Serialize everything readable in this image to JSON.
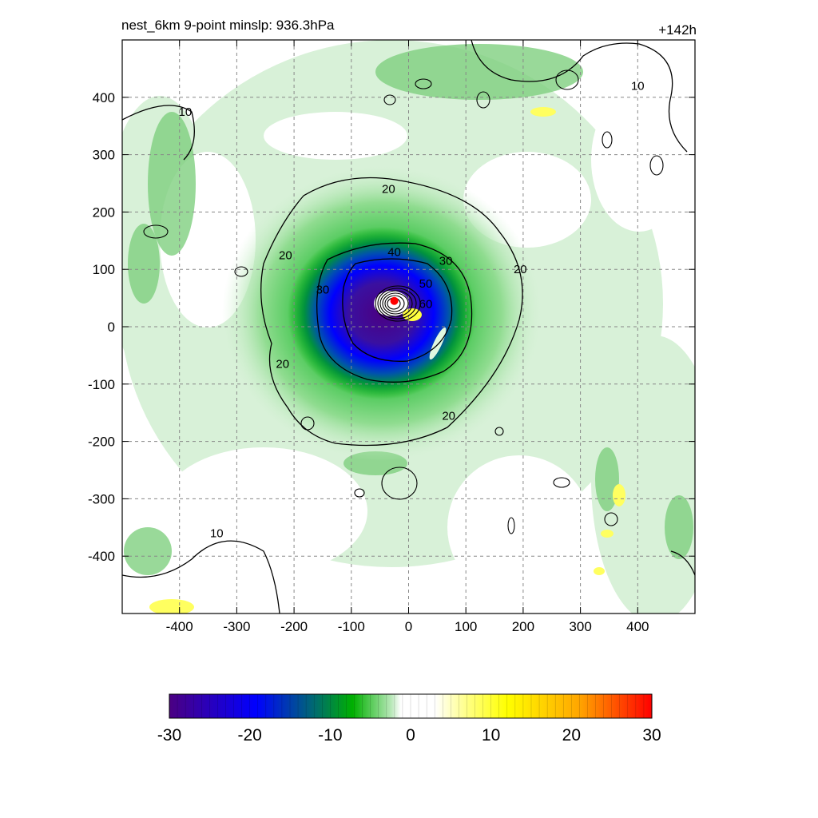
{
  "header": {
    "title": "nest_6km  9-point minslp: 936.3hPa",
    "timestamp": "+142h"
  },
  "chart_data": {
    "type": "heatmap",
    "title": "nest_6km  9-point minslp: 936.3hPa",
    "annotation": "+142h",
    "xlabel": "",
    "ylabel": "",
    "xlim": [
      -500,
      500
    ],
    "ylim": [
      -500,
      500
    ],
    "x_ticks": [
      -400,
      -300,
      -200,
      -100,
      0,
      100,
      200,
      300,
      400
    ],
    "y_ticks": [
      400,
      300,
      200,
      100,
      0,
      -100,
      -200,
      -300,
      -400
    ],
    "grid": true,
    "center": {
      "x": -25,
      "y": 45,
      "color": "#ff0000"
    },
    "contours": [
      {
        "level": 10,
        "label_positions": [
          [
            -390,
            375
          ],
          [
            400,
            420
          ],
          [
            -335,
            -360
          ]
        ]
      },
      {
        "level": 20,
        "label_positions": [
          [
            -35,
            240
          ],
          [
            -215,
            125
          ],
          [
            195,
            100
          ],
          [
            -220,
            -65
          ],
          [
            70,
            -155
          ]
        ]
      },
      {
        "level": 30,
        "label_positions": [
          [
            -150,
            65
          ],
          [
            65,
            115
          ]
        ]
      },
      {
        "level": 40,
        "label_positions": [
          [
            -25,
            130
          ]
        ]
      },
      {
        "level": 50,
        "label_positions": [
          [
            30,
            75
          ]
        ]
      },
      {
        "level": 60,
        "label_positions": [
          [
            30,
            40
          ]
        ]
      }
    ],
    "colorbar": {
      "ticks": [
        -30,
        -20,
        -10,
        0,
        10,
        20,
        30
      ],
      "range": [
        -30,
        30
      ],
      "colors": [
        "#4b0082",
        "#0000ff",
        "#006a70",
        "#00b000",
        "#ffffff",
        "#ffff00",
        "#ffa500",
        "#ff0000"
      ]
    }
  }
}
